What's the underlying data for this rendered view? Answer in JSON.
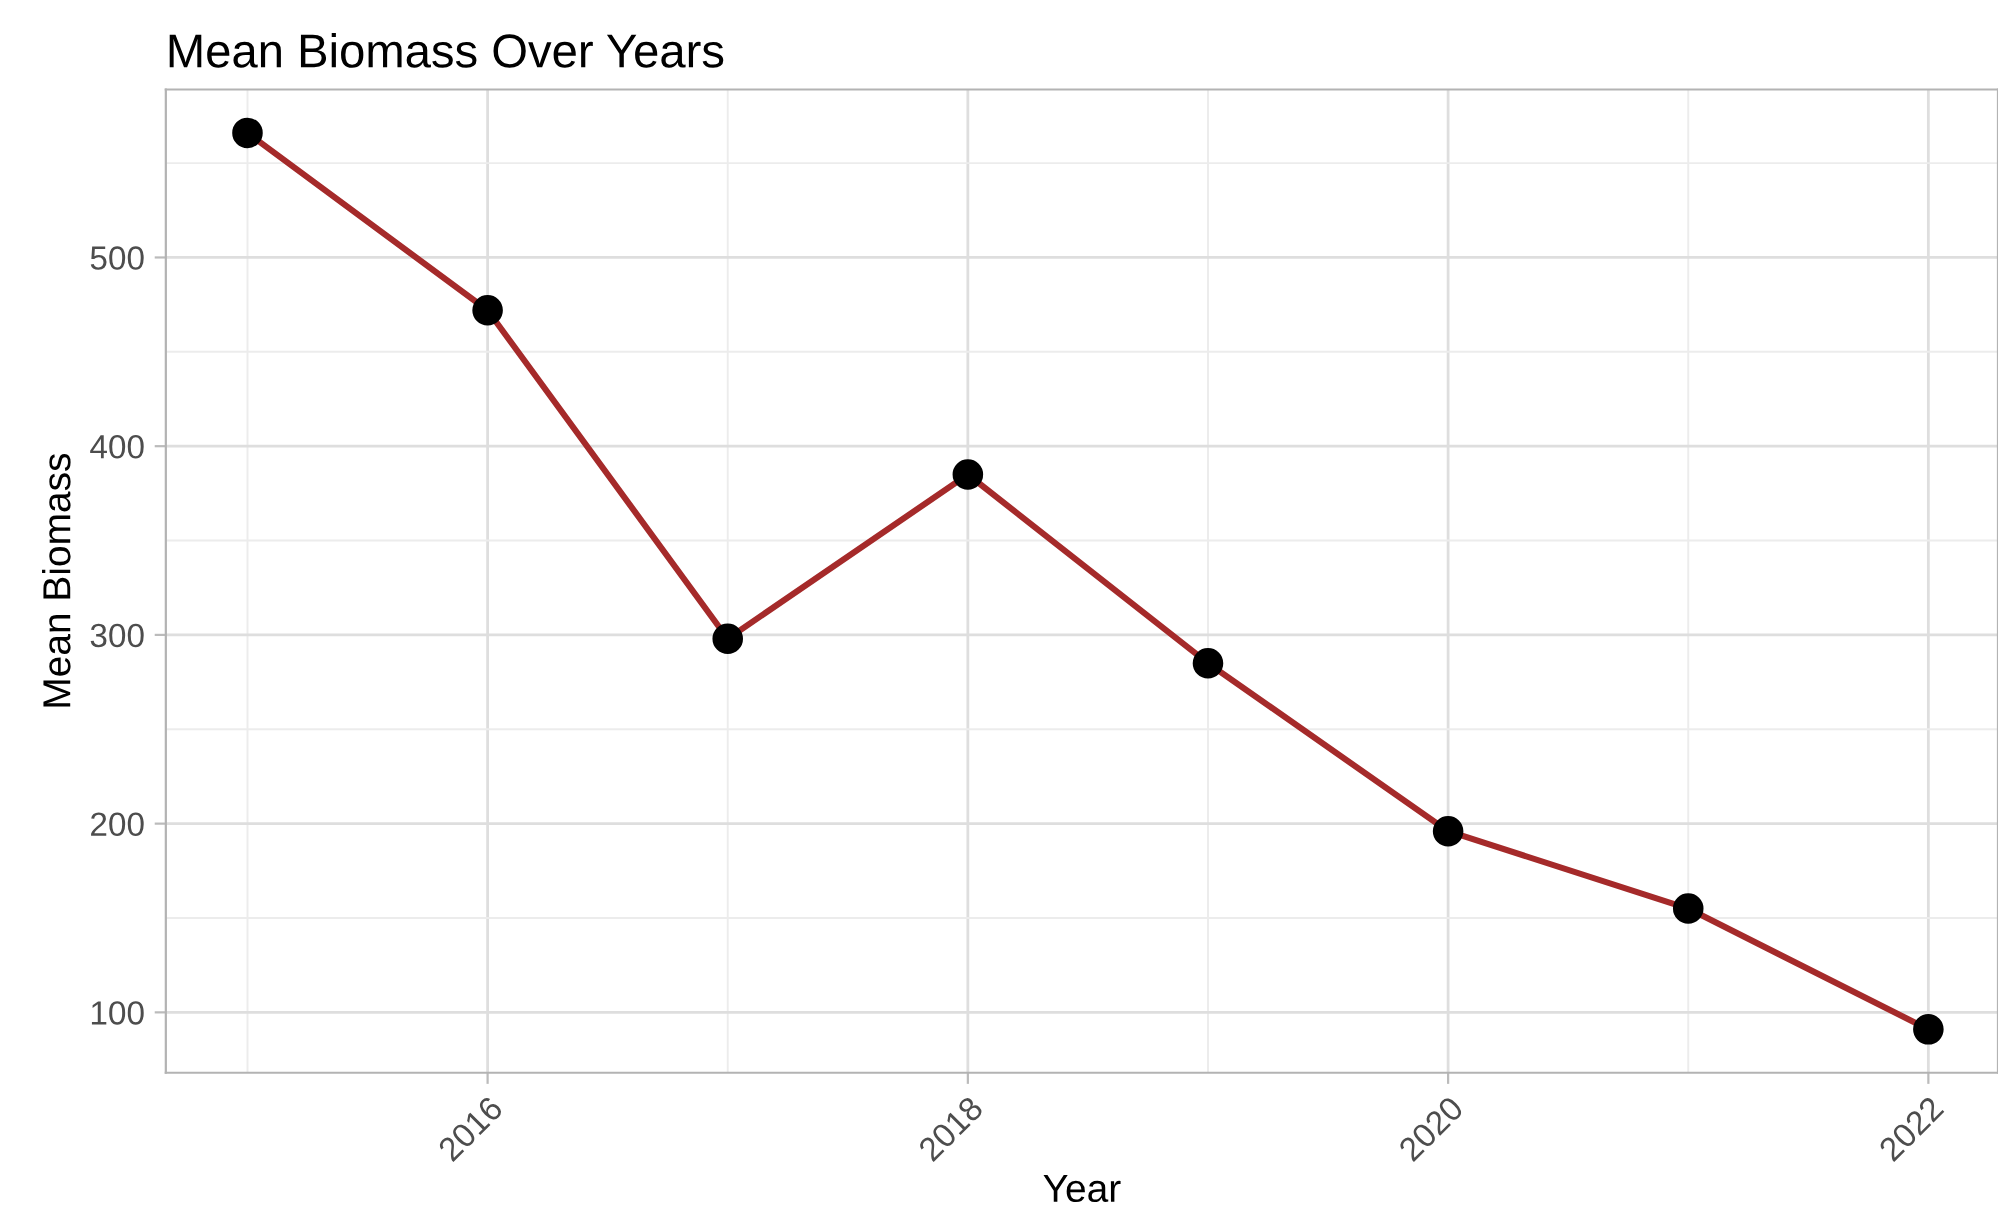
{
  "chart_data": {
    "type": "line",
    "title": "Mean Biomass Over Years",
    "xlabel": "Year",
    "ylabel": "Mean Biomass",
    "x": [
      2015,
      2016,
      2017,
      2018,
      2019,
      2020,
      2021,
      2022
    ],
    "series": [
      {
        "color": "#a52a2a",
        "values": [
          566,
          472,
          298,
          385,
          285,
          196,
          155,
          91
        ]
      }
    ],
    "xlim": [
      2014.66,
      2022.29
    ],
    "xticks": [
      2016,
      2018,
      2020,
      2022
    ],
    "ylim": [
      68,
      589
    ],
    "yticks": [
      100,
      200,
      300,
      400,
      500
    ],
    "grid": true,
    "marker": "circle",
    "line_style": "solid"
  }
}
